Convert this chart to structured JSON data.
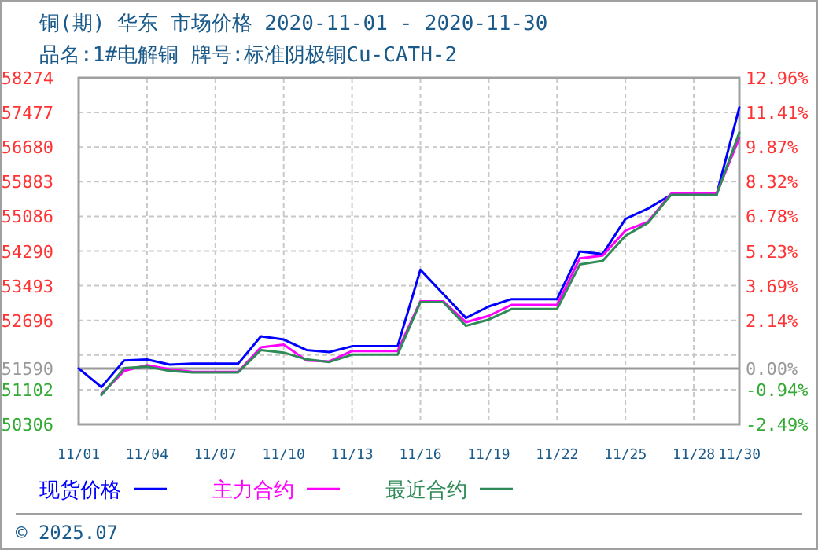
{
  "chart_data": {
    "type": "line",
    "title": "铜(期) 华东 市场价格 2020-11-01 - 2020-11-30",
    "subtitle": "品名:1#电解铜 牌号:标准阴极铜Cu-CATH-2",
    "x": [
      "2020-11-01",
      "2020-11-02",
      "2020-11-03",
      "2020-11-04",
      "2020-11-05",
      "2020-11-06",
      "2020-11-07",
      "2020-11-08",
      "2020-11-09",
      "2020-11-10",
      "2020-11-11",
      "2020-11-12",
      "2020-11-13",
      "2020-11-14",
      "2020-11-15",
      "2020-11-16",
      "2020-11-17",
      "2020-11-18",
      "2020-11-19",
      "2020-11-20",
      "2020-11-21",
      "2020-11-22",
      "2020-11-23",
      "2020-11-24",
      "2020-11-25",
      "2020-11-26",
      "2020-11-27",
      "2020-11-28",
      "2020-11-29",
      "2020-11-30"
    ],
    "series": [
      {
        "name": "现货价格",
        "color": "#0000ff",
        "values": [
          51590,
          51162,
          51776,
          51798,
          51679,
          51700,
          51700,
          51700,
          52329,
          52257,
          52015,
          51968,
          52102,
          52102,
          52102,
          53858,
          53305,
          52752,
          53016,
          53185,
          53185,
          53185,
          54281,
          54220,
          55029,
          55268,
          55582,
          55582,
          55582,
          57594
        ]
      },
      {
        "name": "主力合约",
        "color": "#ff00ff",
        "values": [
          null,
          51004,
          51535,
          51668,
          51571,
          51511,
          51511,
          51511,
          52077,
          52138,
          51776,
          51752,
          51992,
          51992,
          51992,
          53135,
          53135,
          52655,
          52799,
          53052,
          53052,
          53052,
          54125,
          54185,
          54762,
          54967,
          55607,
          55607,
          55607,
          56894
        ]
      },
      {
        "name": "最近合约",
        "color": "#2e8b57",
        "values": [
          null,
          50980,
          51596,
          51632,
          51535,
          51499,
          51499,
          51499,
          52015,
          51956,
          51800,
          51740,
          51908,
          51908,
          51908,
          53114,
          53114,
          52571,
          52715,
          52956,
          52956,
          52956,
          53981,
          54064,
          54642,
          54943,
          55582,
          55582,
          55582,
          57016
        ]
      }
    ],
    "xlim": [
      "2020-11-01",
      "2020-11-30"
    ],
    "xticks": [
      {
        "value": "2020-11-01",
        "label": "11/01"
      },
      {
        "value": "2020-11-04",
        "label": "11/04"
      },
      {
        "value": "2020-11-07",
        "label": "11/07"
      },
      {
        "value": "2020-11-10",
        "label": "11/10"
      },
      {
        "value": "2020-11-13",
        "label": "11/13"
      },
      {
        "value": "2020-11-16",
        "label": "11/16"
      },
      {
        "value": "2020-11-19",
        "label": "11/19"
      },
      {
        "value": "2020-11-22",
        "label": "11/22"
      },
      {
        "value": "2020-11-25",
        "label": "11/25"
      },
      {
        "value": "2020-11-28",
        "label": "11/28"
      },
      {
        "value": "2020-11-30",
        "label": "11/30"
      }
    ],
    "ylim": [
      50306,
      58274
    ],
    "yticks": [
      50306,
      51102,
      51590,
      {
        "value": 51899,
        "label": null
      },
      52696,
      53493,
      54290,
      55086,
      55883,
      56680,
      57477,
      58274
    ],
    "y2lim": [
      -2.49,
      12.96
    ],
    "y2ticks": [
      {
        "value": -2.49,
        "label": "-2.49%"
      },
      {
        "value": -0.94,
        "label": "-0.94%"
      },
      {
        "value": 0,
        "label": "0.00%"
      },
      {
        "value": 2.14,
        "label": "2.14%"
      },
      {
        "value": 3.69,
        "label": "3.69%"
      },
      {
        "value": 5.23,
        "label": "5.23%"
      },
      {
        "value": 6.78,
        "label": "6.78%"
      },
      {
        "value": 8.32,
        "label": "8.32%"
      },
      {
        "value": 9.87,
        "label": "9.87%"
      },
      {
        "value": 11.41,
        "label": "11.41%"
      },
      {
        "value": 12.96,
        "label": "12.96%"
      }
    ],
    "ref_lines": [
      {
        "axis": "y",
        "value": 51590,
        "color": "#999999"
      }
    ],
    "grid": true,
    "legend": "bottom",
    "line_style": "solid",
    "marker": "none",
    "annotations": [
      "© 2025.07"
    ]
  }
}
